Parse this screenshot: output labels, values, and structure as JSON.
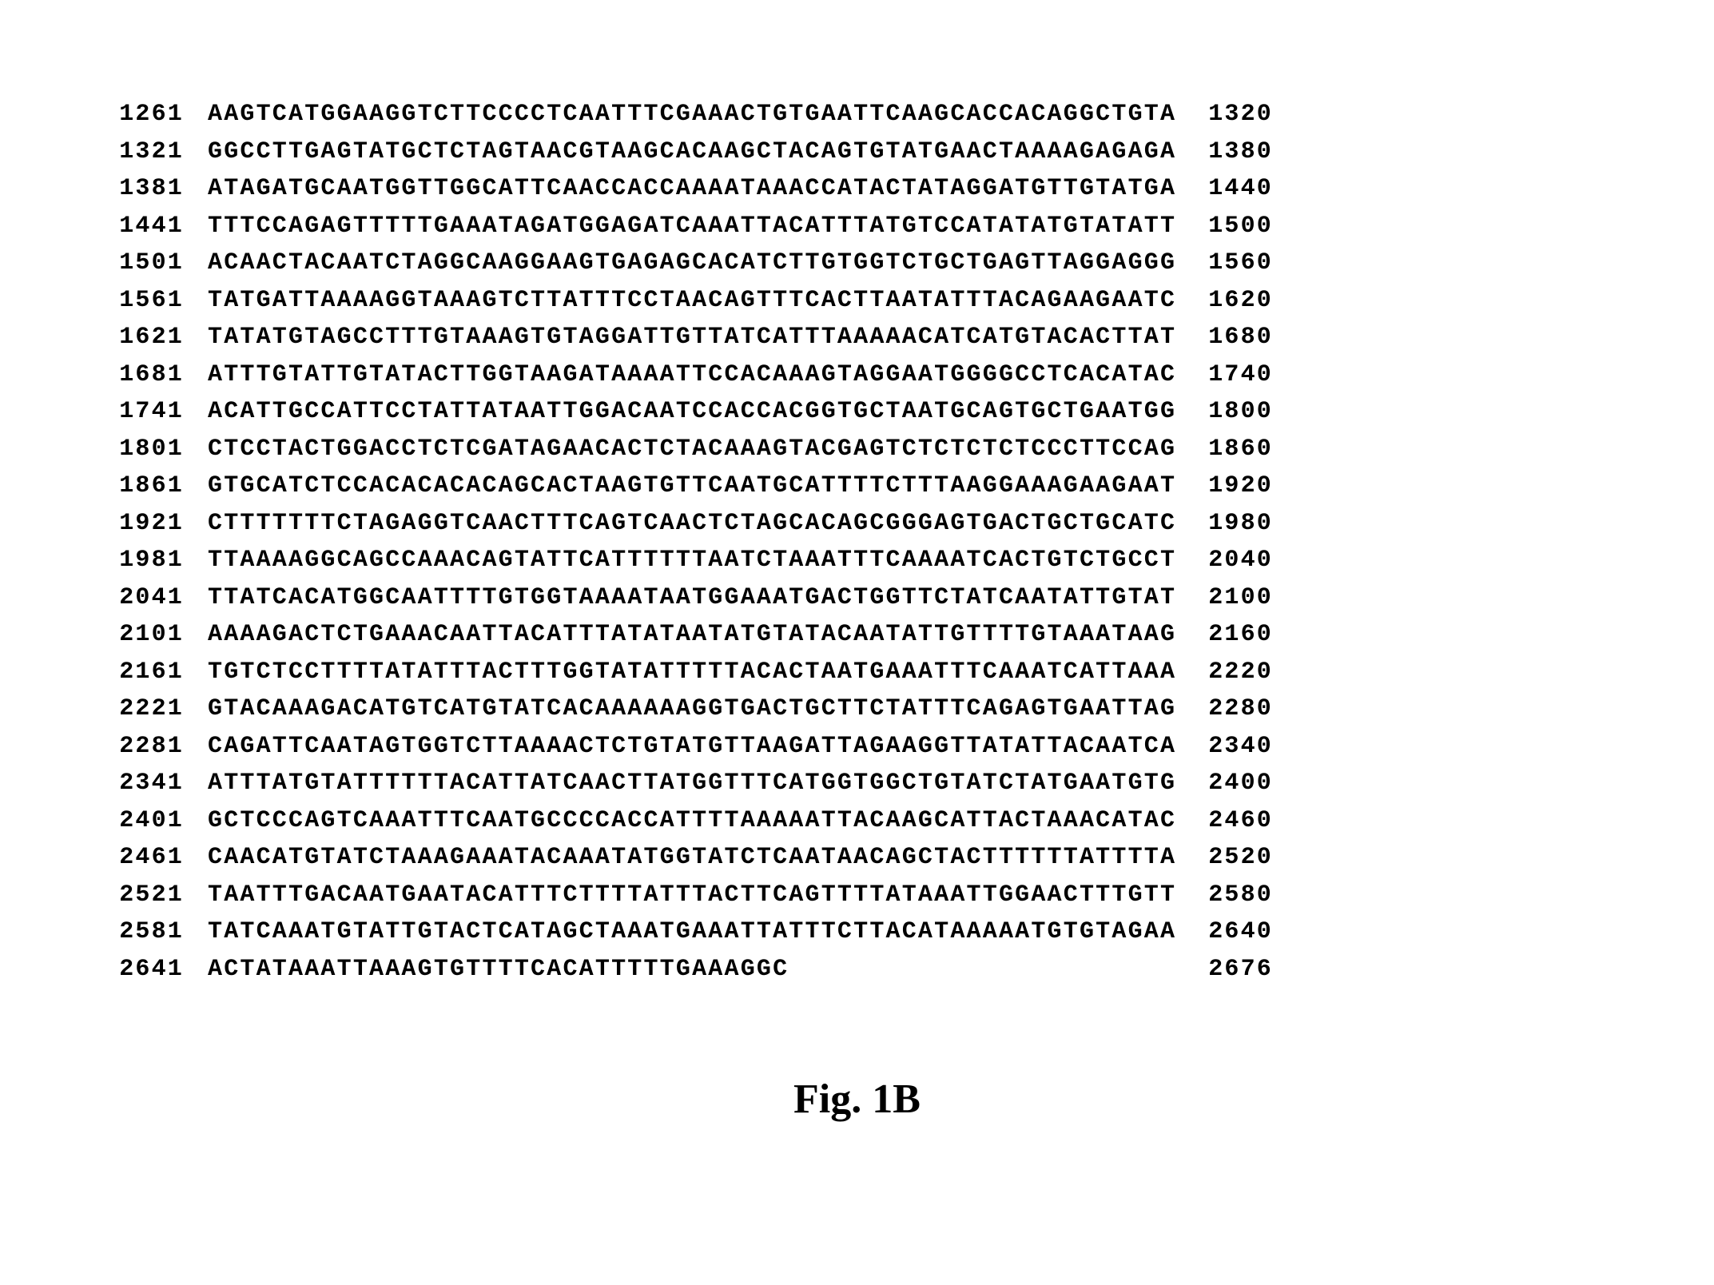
{
  "figure_caption": "Fig. 1B",
  "sequence_rows": [
    {
      "start": "1261",
      "seq": "AAGTCATGGAAGGTCTTCCCCTCAATTTCGAAACTGTGAATTCAAGCACCACAGGCTGTA",
      "end": "1320"
    },
    {
      "start": "1321",
      "seq": "GGCCTTGAGTATGCTCTAGTAACGTAAGCACAAGCTACAGTGTATGAACTAAAAGAGAGA",
      "end": "1380"
    },
    {
      "start": "1381",
      "seq": "ATAGATGCAATGGTTGGCATTCAACCACCAAAATAAACCATACTATAGGATGTTGTATGA",
      "end": "1440"
    },
    {
      "start": "1441",
      "seq": "TTTCCAGAGTTTTTGAAATAGATGGAGATCAAATTACATTTATGTCCATATATGTATATT",
      "end": "1500"
    },
    {
      "start": "1501",
      "seq": "ACAACTACAATCTAGGCAAGGAAGTGAGAGCACATCTTGTGGTCTGCTGAGTTAGGAGGG",
      "end": "1560"
    },
    {
      "start": "1561",
      "seq": "TATGATTAAAAGGTAAAGTCTTATTTCCTAACAGTTTCACTTAATATTTACAGAAGAATC",
      "end": "1620"
    },
    {
      "start": "1621",
      "seq": "TATATGTAGCCTTTGTAAAGTGTAGGATTGTTATCATTTAAAAACATCATGTACACTTAT",
      "end": "1680"
    },
    {
      "start": "1681",
      "seq": "ATTTGTATTGTATACTTGGTAAGATAAAATTCCACAAAGTAGGAATGGGGCCTCACATAC",
      "end": "1740"
    },
    {
      "start": "1741",
      "seq": "ACATTGCCATTCCTATTATAATTGGACAATCCACCACGGTGCTAATGCAGTGCTGAATGG",
      "end": "1800"
    },
    {
      "start": "1801",
      "seq": "CTCCTACTGGACCTCTCGATAGAACACTCTACAAAGTACGAGTCTCTCTCTCCCTTCCAG",
      "end": "1860"
    },
    {
      "start": "1861",
      "seq": "GTGCATCTCCACACACACAGCACTAAGTGTTCAATGCATTTTCTTTAAGGAAAGAAGAAT",
      "end": "1920"
    },
    {
      "start": "1921",
      "seq": "CTTTTTTTCTAGAGGTCAACTTTCAGTCAACTCTAGCACAGCGGGAGTGACTGCTGCATC",
      "end": "1980"
    },
    {
      "start": "1981",
      "seq": "TTAAAAGGCAGCCAAACAGTATTCATTTTTTAATCTAAATTTCAAAATCACTGTCTGCCT",
      "end": "2040"
    },
    {
      "start": "2041",
      "seq": "TTATCACATGGCAATTTTGTGGTAAAATAATGGAAATGACTGGTTCTATCAATATTGTAT",
      "end": "2100"
    },
    {
      "start": "2101",
      "seq": "AAAAGACTCTGAAACAATTACATTTATATAATATGTATACAATATTGTTTTGTAAATAAG",
      "end": "2160"
    },
    {
      "start": "2161",
      "seq": "TGTCTCCTTTTATATTTACTTTGGTATATTTTTACACTAATGAAATTTCAAATCATTAAA",
      "end": "2220"
    },
    {
      "start": "2221",
      "seq": "GTACAAAGACATGTCATGTATCACAAAAAAGGTGACTGCTTCTATTTCAGAGTGAATTAG",
      "end": "2280"
    },
    {
      "start": "2281",
      "seq": "CAGATTCAATAGTGGTCTTAAAACTCTGTATGTTAAGATTAGAAGGTTATATTACAATCA",
      "end": "2340"
    },
    {
      "start": "2341",
      "seq": "ATTTATGTATTTTTTACATTATCAACTTATGGTTTCATGGTGGCTGTATCTATGAATGTG",
      "end": "2400"
    },
    {
      "start": "2401",
      "seq": "GCTCCCAGTCAAATTTCAATGCCCCACCATTTTAAAAATTACAAGCATTACTAAACATAC",
      "end": "2460"
    },
    {
      "start": "2461",
      "seq": "CAACATGTATCTAAAGAAATACAAATATGGTATCTCAATAACAGCTACTTTTTTATTTTA",
      "end": "2520"
    },
    {
      "start": "2521",
      "seq": "TAATTTGACAATGAATACATTTCTTTTATTTACTTCAGTTTTATAAATTGGAACTTTGTT",
      "end": "2580"
    },
    {
      "start": "2581",
      "seq": "TATCAAATGTATTGTACTCATAGCTAAATGAAATTATTTCTTACATAAAAATGTGTAGAA",
      "end": "2640"
    },
    {
      "start": "2641",
      "seq": "ACTATAAATTAAAGTGTTTTCACATTTTTGAAAGGC",
      "end": "2676"
    }
  ]
}
